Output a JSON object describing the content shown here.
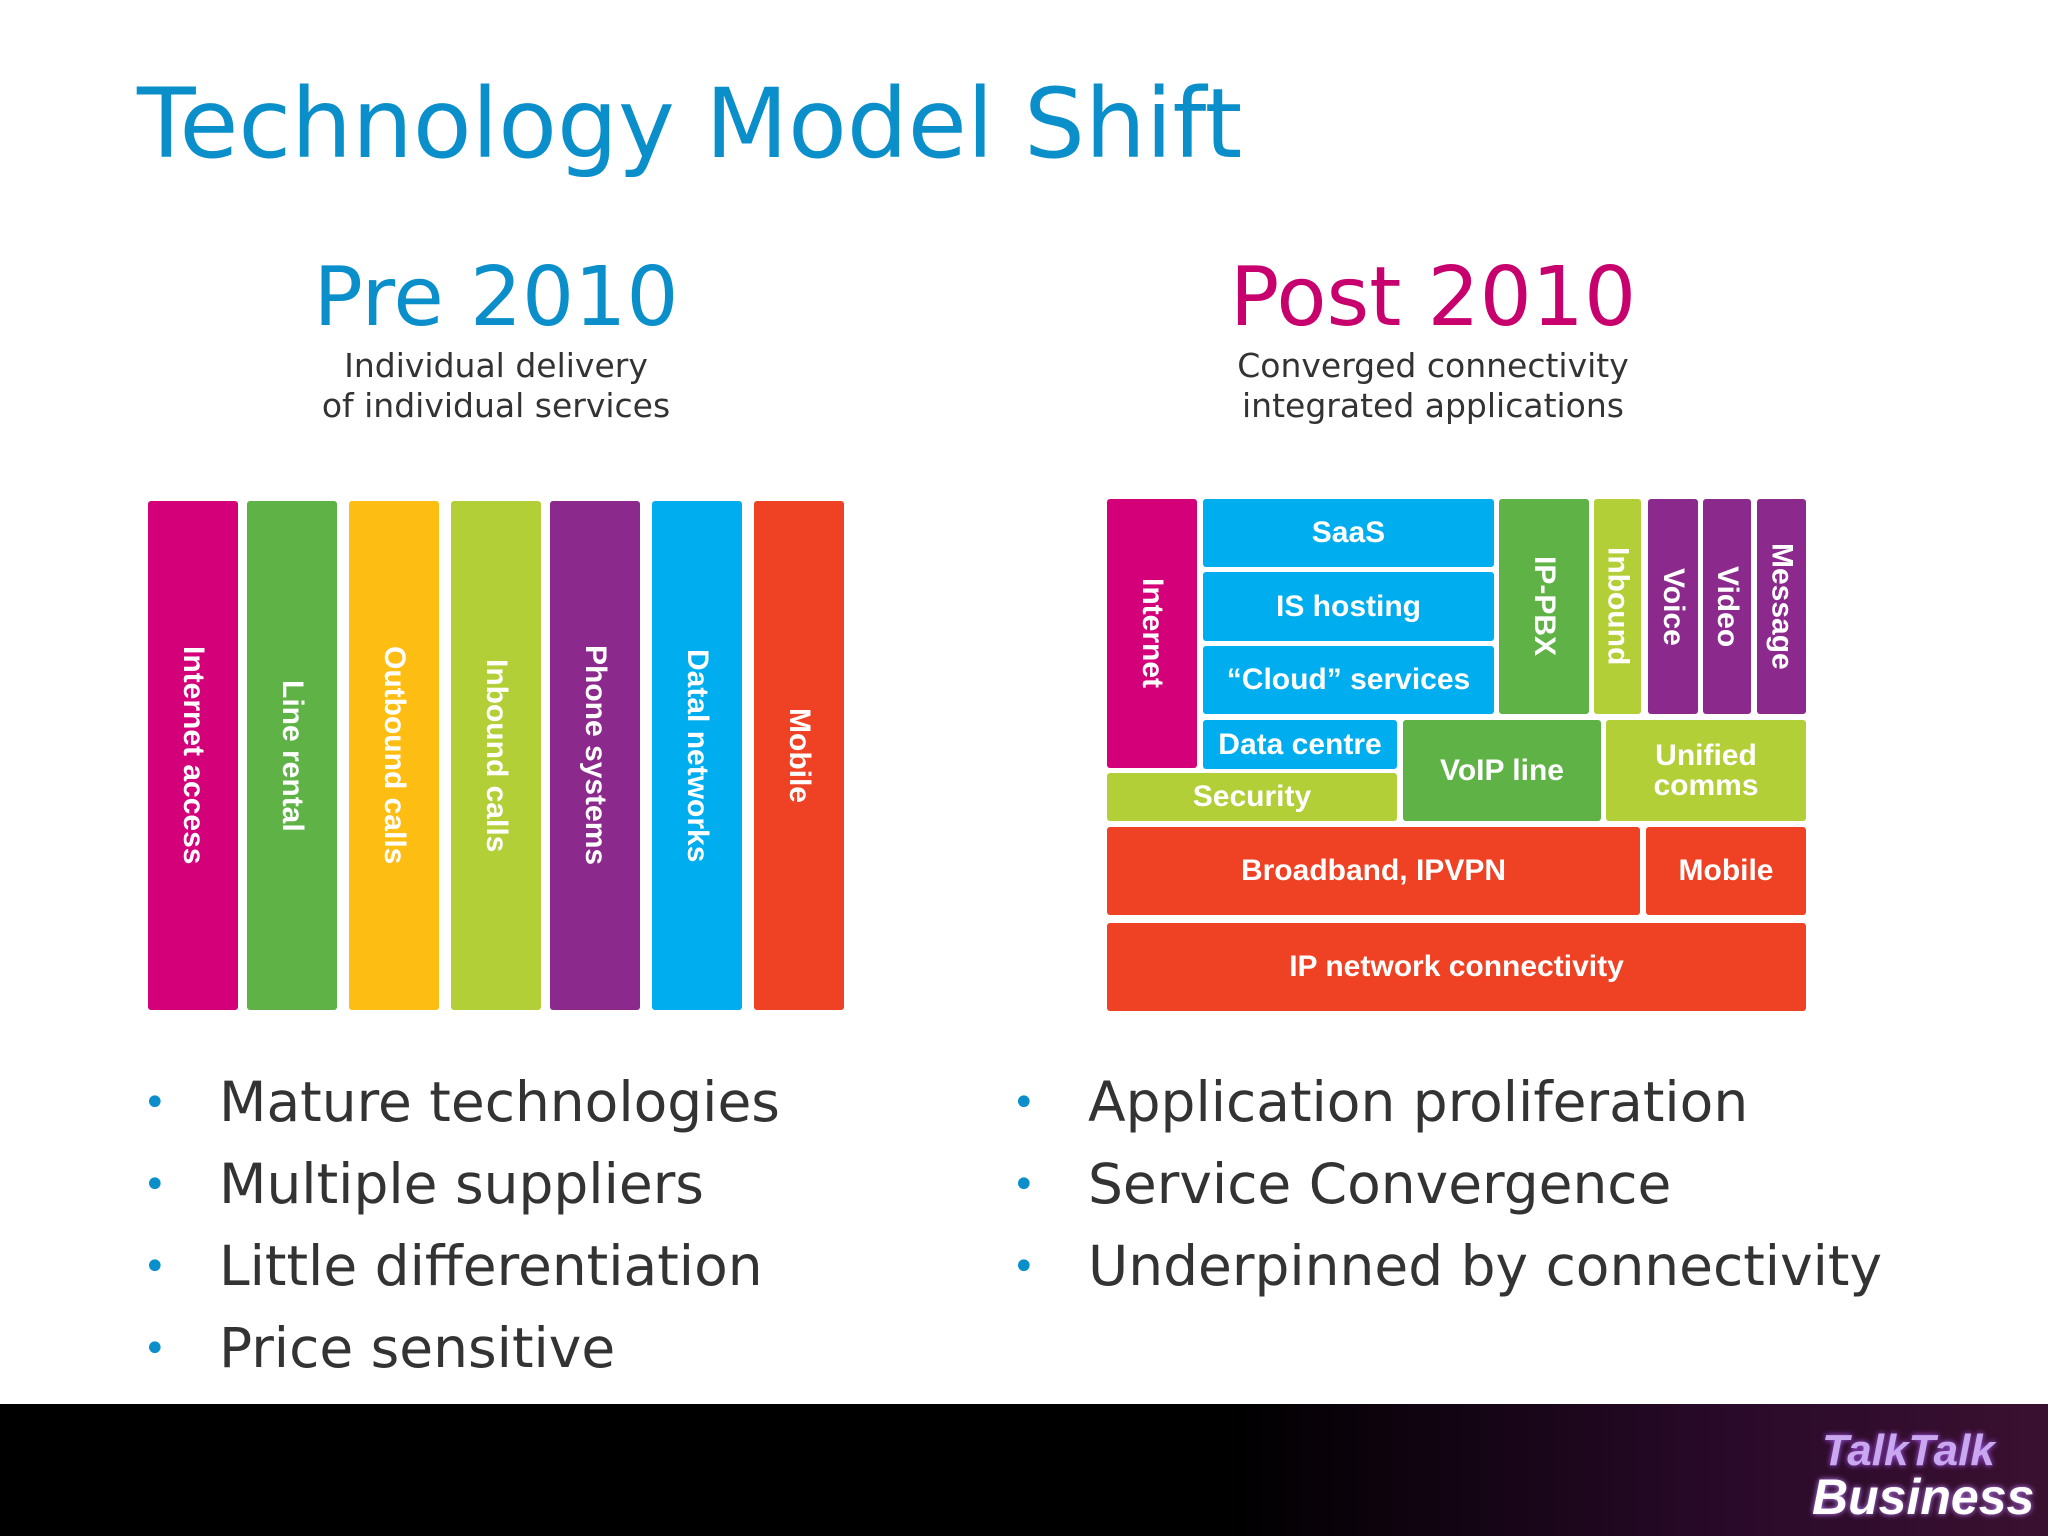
{
  "title": "Technology Model Shift",
  "left": {
    "heading": "Pre 2010",
    "subtitle": [
      "Individual delivery",
      "of individual services"
    ],
    "columns": [
      "Internet access",
      "Line rental",
      "Outbound calls",
      "Inbound calls",
      "Phone systems",
      "Datal networks",
      "Mobile"
    ],
    "bullets": [
      "Mature technologies",
      "Multiple suppliers",
      "Little differentiation",
      "Price sensitive"
    ]
  },
  "right": {
    "heading": "Post 2010",
    "subtitle": [
      "Converged connectivity",
      "integrated applications"
    ],
    "blocks": [
      "Internet",
      "SaaS",
      "IS hosting",
      "“Cloud” services",
      "IP-PBX",
      "Inbound",
      "Voice",
      "Video",
      "Message",
      "Data centre",
      "Security",
      "VoIP line",
      "Unified comms",
      "Broadband, IPVPN",
      "Mobile",
      "IP network connectivity"
    ],
    "bullets": [
      "Application proliferation",
      "Service Convergence",
      "Underpinned by connectivity"
    ]
  },
  "footer": {
    "logo": [
      "TalkTalk",
      "Business"
    ]
  }
}
